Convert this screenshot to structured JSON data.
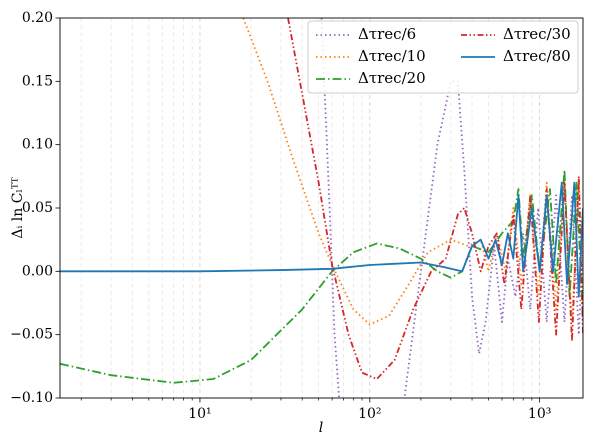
{
  "chart_data": {
    "type": "line",
    "xlabel": "l",
    "ylabel": "Δᵢ ln Cₗᵀᵀ",
    "xscale": "log",
    "xlim": [
      1.5,
      1800
    ],
    "ylim": [
      -0.1,
      0.2
    ],
    "xticks": [
      {
        "value": 10,
        "label": "10¹"
      },
      {
        "value": 100,
        "label": "10²"
      },
      {
        "value": 1000,
        "label": "10³"
      }
    ],
    "xminorticks": [
      2,
      3,
      4,
      5,
      6,
      7,
      8,
      9,
      20,
      30,
      40,
      50,
      60,
      70,
      80,
      90,
      200,
      300,
      400,
      500,
      600,
      700,
      800,
      900
    ],
    "yticks": [
      {
        "value": -0.1,
        "label": "−0.10"
      },
      {
        "value": -0.05,
        "label": "−0.05"
      },
      {
        "value": 0,
        "label": "0.00"
      },
      {
        "value": 0.05,
        "label": "0.05"
      },
      {
        "value": 0.1,
        "label": "0.10"
      },
      {
        "value": 0.15,
        "label": "0.15"
      },
      {
        "value": 0.2,
        "label": "0.20"
      }
    ],
    "grid": "x",
    "legend": "upper right",
    "series": [
      {
        "name": "Δτrec/6",
        "color": "#9467bd",
        "linestyle": "dotted",
        "x": [
          52,
          58,
          62,
          66,
          70,
          150,
          160,
          200,
          250,
          300,
          330,
          360,
          400,
          440,
          480,
          540,
          600,
          650,
          720,
          800,
          880,
          980,
          1100,
          1250,
          1400,
          1550,
          1700,
          1800
        ],
        "values": [
          0.2,
          0.05,
          -0.05,
          -0.1,
          -0.15,
          -0.12,
          -0.1,
          0.0,
          0.1,
          0.15,
          0.15,
          0.08,
          -0.02,
          -0.065,
          -0.04,
          0.02,
          -0.04,
          0.01,
          -0.02,
          0.03,
          -0.03,
          0.05,
          -0.04,
          0.06,
          -0.04,
          0.06,
          -0.05,
          0.02
        ]
      },
      {
        "name": "Δτrec/10",
        "color": "#ff7f0e",
        "linestyle": "dotted",
        "x": [
          18,
          25,
          35,
          50,
          60,
          80,
          100,
          130,
          170,
          220,
          300,
          380,
          450,
          500,
          560,
          630,
          700,
          780,
          880,
          980,
          1100,
          1250,
          1400,
          1550,
          1700,
          1800
        ],
        "values": [
          0.2,
          0.15,
          0.09,
          0.03,
          0.005,
          -0.03,
          -0.042,
          -0.035,
          -0.01,
          0.015,
          0.025,
          0.02,
          0.025,
          0.0,
          0.03,
          0.0,
          0.05,
          -0.01,
          0.06,
          -0.02,
          0.07,
          -0.03,
          0.07,
          -0.04,
          0.07,
          0.0
        ]
      },
      {
        "name": "Δτrec/20",
        "color": "#2ca02c",
        "linestyle": "dashdot",
        "x": [
          1.5,
          3,
          7,
          12,
          20,
          40,
          60,
          80,
          110,
          150,
          200,
          250,
          300,
          350,
          400,
          500,
          600,
          700,
          750,
          800,
          900,
          1000,
          1150,
          1250,
          1400,
          1500,
          1650,
          1800
        ],
        "values": [
          -0.073,
          -0.082,
          -0.088,
          -0.085,
          -0.07,
          -0.03,
          0.0,
          0.015,
          0.022,
          0.018,
          0.01,
          0.0,
          -0.005,
          0.0,
          0.02,
          0.015,
          0.03,
          0.04,
          0.065,
          0.01,
          0.06,
          0.0,
          0.065,
          -0.01,
          0.08,
          -0.02,
          0.07,
          -0.04
        ]
      },
      {
        "name": "Δτrec/30",
        "color": "#d62728",
        "linestyle": "dashdotdot",
        "x": [
          33,
          40,
          50,
          60,
          75,
          90,
          110,
          140,
          180,
          230,
          280,
          330,
          360,
          400,
          450,
          500,
          560,
          620,
          700,
          780,
          880,
          990,
          1100,
          1250,
          1400,
          1550,
          1700,
          1800
        ],
        "values": [
          0.2,
          0.14,
          0.07,
          0.005,
          -0.05,
          -0.08,
          -0.085,
          -0.07,
          -0.03,
          0.0,
          0.01,
          0.045,
          0.05,
          0.03,
          0.0,
          0.02,
          0.03,
          -0.01,
          0.045,
          -0.03,
          0.06,
          -0.04,
          0.065,
          -0.05,
          0.07,
          -0.055,
          0.075,
          -0.05
        ]
      },
      {
        "name": "Δτrec/80",
        "color": "#1f77b4",
        "linestyle": "solid",
        "x": [
          1.5,
          10,
          30,
          60,
          100,
          200,
          280,
          350,
          400,
          450,
          500,
          550,
          600,
          650,
          700,
          750,
          800,
          900,
          1000,
          1100,
          1200,
          1350,
          1450,
          1600,
          1700,
          1800
        ],
        "values": [
          0.0,
          0.0,
          0.001,
          0.002,
          0.005,
          0.007,
          0.003,
          0.0,
          0.02,
          0.025,
          0.01,
          0.025,
          0.005,
          0.03,
          0.01,
          0.06,
          0.0,
          0.05,
          0.0,
          0.06,
          0.0,
          0.07,
          -0.01,
          0.07,
          -0.02,
          0.05
        ]
      }
    ]
  }
}
